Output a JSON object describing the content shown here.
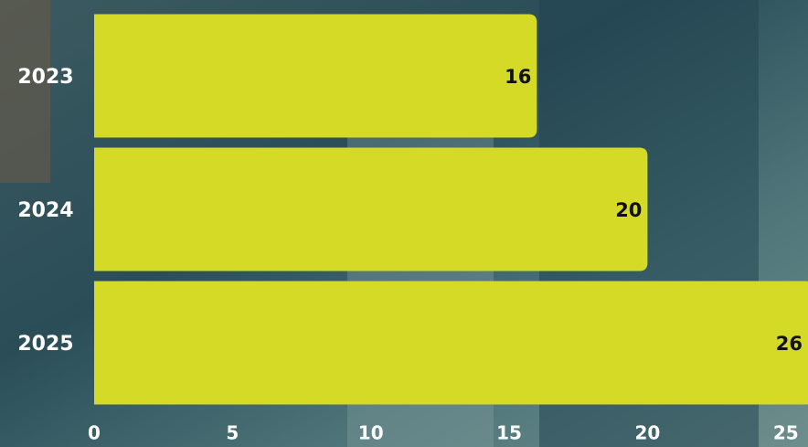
{
  "chart_data": {
    "type": "bar",
    "orientation": "horizontal",
    "categories": [
      "2023",
      "2024",
      "2025"
    ],
    "values": [
      16,
      20,
      26
    ],
    "color": "#d4da26",
    "xlim": [
      0,
      25.8
    ],
    "xticks": [
      0,
      5,
      10,
      15,
      20,
      25
    ]
  }
}
